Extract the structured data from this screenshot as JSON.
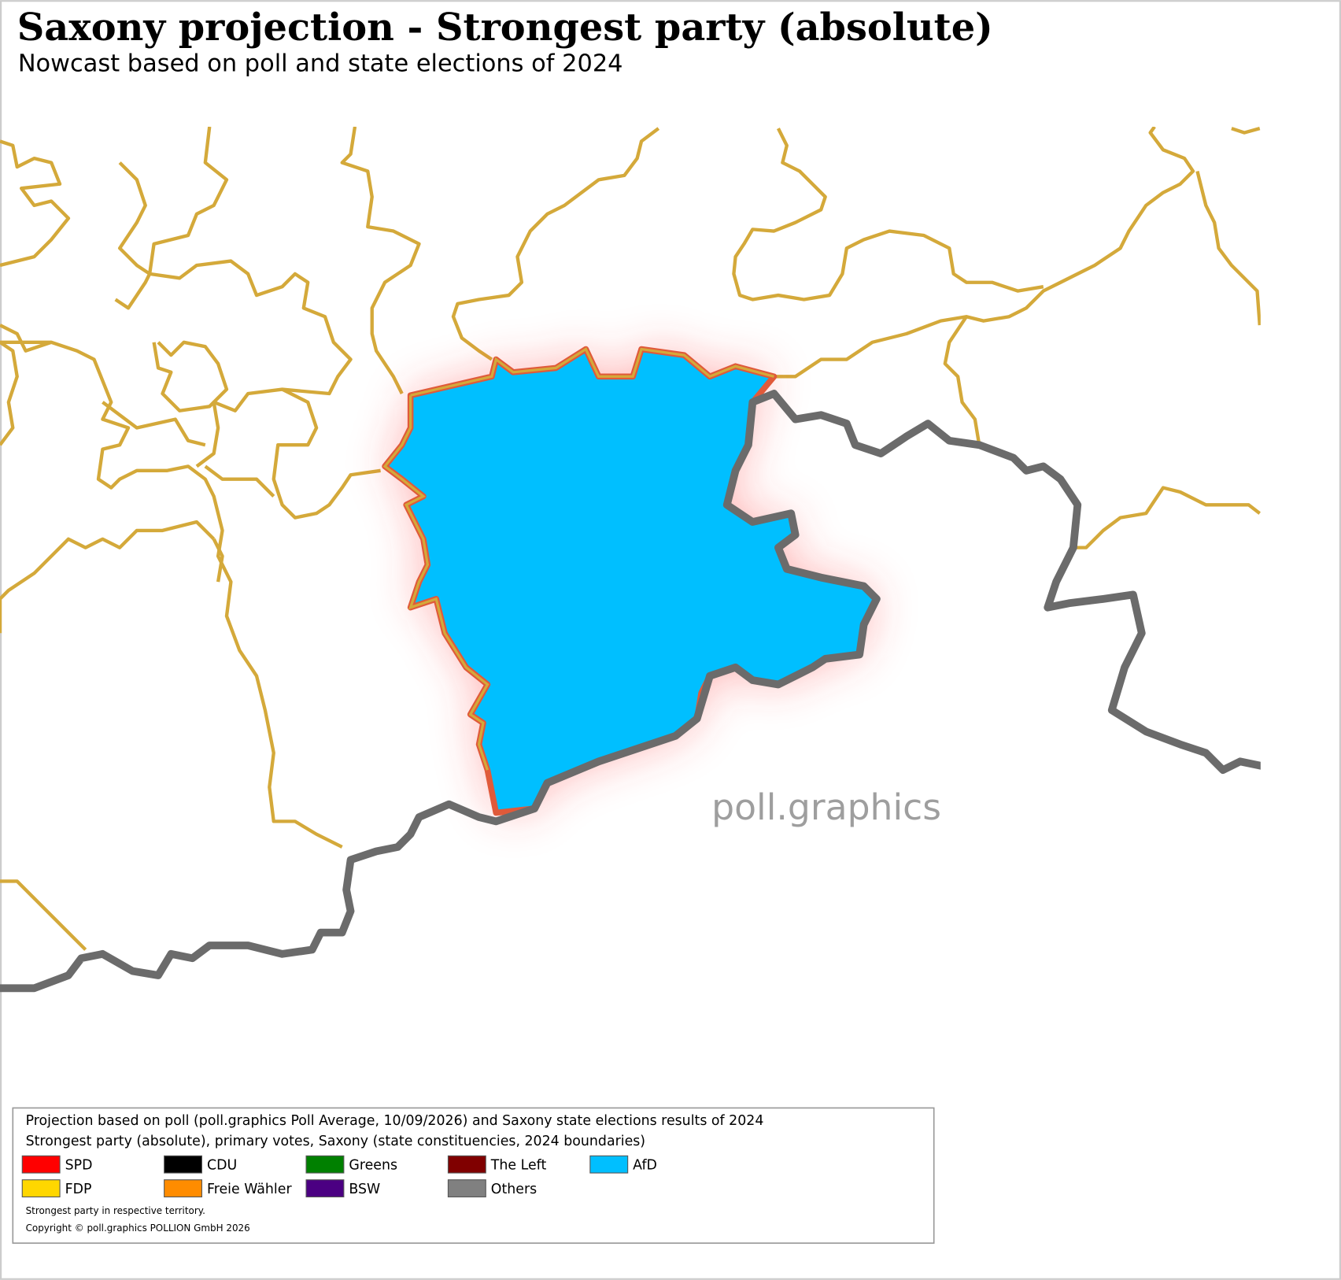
{
  "header": {
    "title": "Saxony projection - Strongest party (absolute)",
    "subtitle": "Nowcast based on poll and state elections of 2024"
  },
  "watermark": "poll.graphics",
  "legend": {
    "lines": [
      "Projection based on poll (poll.graphics Poll Average, 10/09/2026) and Saxony state elections results of 2024",
      "Strongest party (absolute), primary votes, Saxony (state constituencies, 2024 boundaries)"
    ],
    "items": [
      {
        "label": "SPD",
        "color": "#ff0000"
      },
      {
        "label": "CDU",
        "color": "#000000"
      },
      {
        "label": "Greens",
        "color": "#008000"
      },
      {
        "label": "The Left",
        "color": "#800000"
      },
      {
        "label": "AfD",
        "color": "#00bfff"
      },
      {
        "label": "FDP",
        "color": "#ffd700"
      },
      {
        "label": "Freie Wähler",
        "color": "#ff8c00"
      },
      {
        "label": "BSW",
        "color": "#4b0082"
      },
      {
        "label": "Others",
        "color": "#808080"
      }
    ],
    "notes": [
      "Strongest party in respective territory.",
      "Copyright © poll.graphics POLLION GmbH 2026"
    ]
  }
}
